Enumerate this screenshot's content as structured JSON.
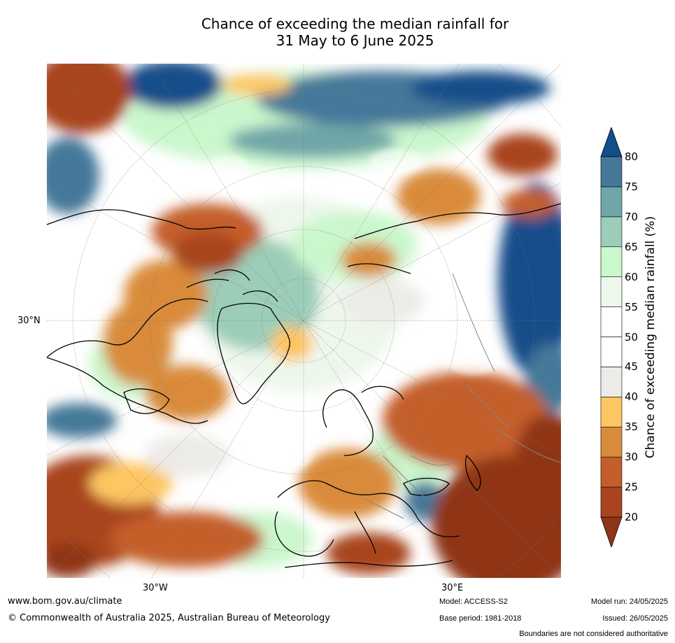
{
  "title": {
    "line1": "Chance of exceeding the median rainfall for",
    "line2": "31 May to 6 June 2025"
  },
  "map": {
    "lat_label": "30°N",
    "lon_labels": [
      "30°W",
      "30°E"
    ]
  },
  "colorbar": {
    "label": "Chance of exceeding median rainfall (%)",
    "ticks": [
      "20",
      "25",
      "30",
      "35",
      "40",
      "45",
      "50",
      "55",
      "60",
      "65",
      "70",
      "75",
      "80"
    ],
    "colors": [
      "#8f3519",
      "#a9441f",
      "#c45e2a",
      "#d98b3b",
      "#fec662",
      "#ecebe7",
      "#ffffff",
      "#ffffff",
      "#eef7ec",
      "#cbf7cd",
      "#9bcdb8",
      "#6fa6a8",
      "#457899",
      "#134e8a"
    ]
  },
  "footer": {
    "url": "www.bom.gov.au/climate",
    "copyright": "© Commonwealth of Australia 2025, Australian Bureau of Meteorology",
    "model": "Model: ACCESS-S2",
    "base_period": "Base period: 1981-2018",
    "model_run": "Model run: 24/05/2025",
    "issued": "Issued: 26/05/2025",
    "disclaimer": "Boundaries are not considered authoritative"
  }
}
